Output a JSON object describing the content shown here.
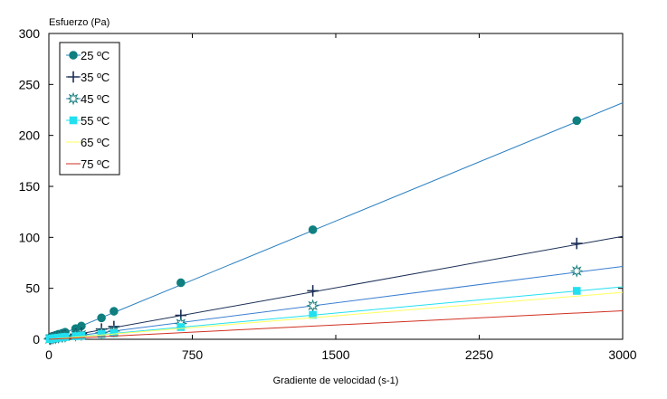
{
  "chart_data": {
    "type": "scatter",
    "title": "",
    "ylabel": "Esfuerzo (Pa)",
    "xlabel": "Gradiente de velocidad (s-1)",
    "xlim": [
      0,
      3000
    ],
    "ylim": [
      0,
      300
    ],
    "xticks": [
      "0",
      "750",
      "1500",
      "2250",
      "3000"
    ],
    "yticks": [
      "0",
      "50",
      "100",
      "150",
      "200",
      "250",
      "300"
    ],
    "grid": false,
    "legend_position": "top-left",
    "series": [
      {
        "name": "25 ºC",
        "marker": "circle-filled",
        "marker_color": "#0f7f7f",
        "line_color": "#2a7fc0",
        "x": [
          5,
          10,
          20,
          35,
          50,
          70,
          85,
          140,
          170,
          275,
          340,
          690,
          1380,
          2760
        ],
        "y": [
          1,
          2,
          3,
          4,
          5,
          6,
          7,
          10.5,
          13,
          21,
          27.5,
          55.5,
          107.5,
          214.5
        ],
        "trend": {
          "x": [
            0,
            3000
          ],
          "y": [
            0,
            232
          ]
        }
      },
      {
        "name": "35 ºC",
        "marker": "plus",
        "marker_color": "#1b2f55",
        "line_color": "#1b2f55",
        "x": [
          5,
          10,
          20,
          35,
          50,
          70,
          85,
          140,
          170,
          275,
          340,
          690,
          1380,
          2760
        ],
        "y": [
          0.5,
          1,
          1.5,
          2,
          2.5,
          3,
          3.5,
          5,
          6,
          10,
          12.5,
          23.5,
          47.5,
          94
        ],
        "trend": {
          "x": [
            0,
            3000
          ],
          "y": [
            0,
            101
          ]
        }
      },
      {
        "name": "45 ºC",
        "marker": "star-open",
        "marker_color": "#1c8080",
        "line_color": "#3a7fd0",
        "x": [
          5,
          10,
          20,
          35,
          50,
          70,
          85,
          140,
          170,
          275,
          340,
          690,
          1380,
          2760
        ],
        "y": [
          0.3,
          0.6,
          1,
          1.5,
          2,
          2.5,
          3,
          4,
          4.5,
          6.5,
          8,
          15.5,
          33,
          67
        ],
        "trend": {
          "x": [
            0,
            3000
          ],
          "y": [
            0,
            71.5
          ]
        }
      },
      {
        "name": "55 ºC",
        "marker": "square-filled",
        "marker_color": "#22e0f0",
        "line_color": "#22e0f0",
        "x": [
          5,
          10,
          20,
          35,
          50,
          70,
          85,
          140,
          170,
          275,
          340,
          690,
          1380,
          2760
        ],
        "y": [
          0.2,
          0.4,
          0.8,
          1.2,
          1.5,
          2,
          2.3,
          3,
          3.5,
          5,
          6,
          12,
          24,
          47.5
        ],
        "trend": {
          "x": [
            0,
            3000
          ],
          "y": [
            0,
            51.5
          ]
        }
      },
      {
        "name": "65 ºC",
        "marker": "line",
        "marker_color": "#ffff80",
        "line_color": "#ffff60",
        "x": [],
        "y": [],
        "trend": {
          "x": [
            0,
            3000
          ],
          "y": [
            0,
            46
          ]
        }
      },
      {
        "name": "75 ºC",
        "marker": "line",
        "marker_color": "#d03020",
        "line_color": "#d03020",
        "x": [],
        "y": [],
        "trend": {
          "x": [
            0,
            3000
          ],
          "y": [
            0,
            28
          ]
        }
      }
    ]
  }
}
